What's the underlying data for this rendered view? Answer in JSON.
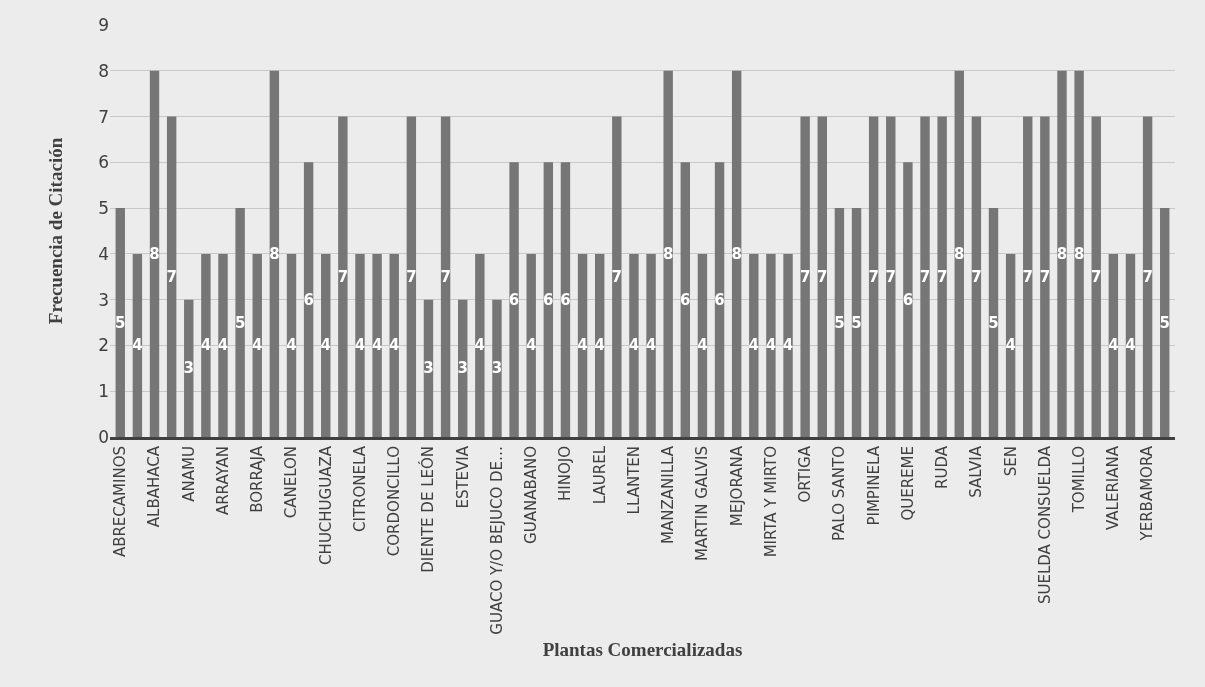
{
  "chart_data": {
    "type": "bar",
    "xlabel": "Plantas Comercializadas",
    "ylabel": "Frecuencia de Citación",
    "categories": [
      "ABRECAMINOS",
      null,
      "ALBAHACA",
      null,
      "ANAMU",
      null,
      "ARRAYAN",
      null,
      "BORRAJA",
      null,
      "CANELON",
      null,
      "CHUCHUGUAZA",
      null,
      "CITRONELA",
      null,
      "CORDONCILLO",
      null,
      "DIENTE DE LEÓN",
      null,
      "ESTEVIA",
      null,
      "GUACO Y/O BEJUCO DE…",
      null,
      "GUANABANO",
      null,
      "HINOJO",
      null,
      "LAUREL",
      null,
      "LLANTEN",
      null,
      "MANZANILLA",
      null,
      "MARTIN GALVIS",
      null,
      "MEJORANA",
      null,
      "MIRTA Y MIRTO",
      null,
      "ORTIGA",
      null,
      "PALO SANTO",
      null,
      "PIMPINELA",
      null,
      "QUEREME",
      null,
      "RUDA",
      null,
      "SALVIA",
      null,
      "SEN",
      null,
      "SUELDA CONSUELDA",
      null,
      "TOMILLO",
      null,
      "VALERIANA",
      null,
      "YERBAMORA",
      null
    ],
    "values": [
      5,
      4,
      8,
      7,
      3,
      4,
      4,
      5,
      4,
      8,
      4,
      6,
      4,
      7,
      4,
      4,
      4,
      7,
      3,
      7,
      3,
      4,
      3,
      6,
      4,
      6,
      6,
      4,
      4,
      7,
      4,
      4,
      8,
      6,
      4,
      6,
      8,
      4,
      4,
      4,
      7,
      7,
      5,
      5,
      7,
      7,
      6,
      7,
      7,
      8,
      7,
      5,
      4,
      7,
      7,
      8,
      8,
      7,
      4,
      4,
      7,
      5
    ],
    "color": "#767676",
    "ylim": [
      0,
      9
    ],
    "yticks": [
      0,
      1,
      2,
      3,
      4,
      5,
      6,
      7,
      8,
      9
    ],
    "grid": "y",
    "data_labels": true
  }
}
